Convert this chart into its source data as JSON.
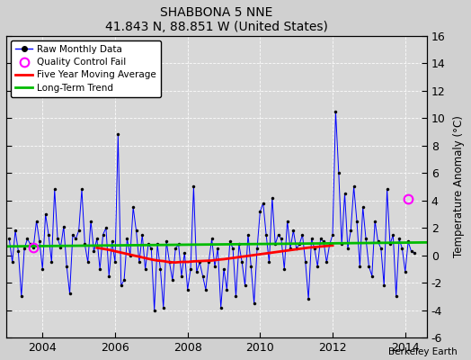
{
  "title": "SHABBONA 5 NNE",
  "subtitle": "41.843 N, 88.851 W (United States)",
  "ylabel": "Temperature Anomaly (°C)",
  "credit": "Berkeley Earth",
  "bg_color": "#d0d0d0",
  "plot_bg_color": "#d8d8d8",
  "ylim": [
    -6,
    16
  ],
  "yticks": [
    -6,
    -4,
    -2,
    0,
    2,
    4,
    6,
    8,
    10,
    12,
    14,
    16
  ],
  "xlim_start": 2003.0,
  "xlim_end": 2014.6,
  "xticks": [
    2004,
    2006,
    2008,
    2010,
    2012,
    2014
  ],
  "raw_color": "#0000ff",
  "ma_color": "#ff0000",
  "trend_color": "#00bb00",
  "qc_color": "#ff00ff",
  "trend_slope": 0.025,
  "trend_intercept": 0.65,
  "raw_data": {
    "times": [
      2003.083,
      2003.167,
      2003.25,
      2003.333,
      2003.417,
      2003.5,
      2003.583,
      2003.667,
      2003.75,
      2003.833,
      2003.917,
      2004.0,
      2004.083,
      2004.167,
      2004.25,
      2004.333,
      2004.417,
      2004.5,
      2004.583,
      2004.667,
      2004.75,
      2004.833,
      2004.917,
      2005.0,
      2005.083,
      2005.167,
      2005.25,
      2005.333,
      2005.417,
      2005.5,
      2005.583,
      2005.667,
      2005.75,
      2005.833,
      2005.917,
      2006.0,
      2006.083,
      2006.167,
      2006.25,
      2006.333,
      2006.417,
      2006.5,
      2006.583,
      2006.667,
      2006.75,
      2006.833,
      2006.917,
      2007.0,
      2007.083,
      2007.167,
      2007.25,
      2007.333,
      2007.417,
      2007.5,
      2007.583,
      2007.667,
      2007.75,
      2007.833,
      2007.917,
      2008.0,
      2008.083,
      2008.167,
      2008.25,
      2008.333,
      2008.417,
      2008.5,
      2008.583,
      2008.667,
      2008.75,
      2008.833,
      2008.917,
      2009.0,
      2009.083,
      2009.167,
      2009.25,
      2009.333,
      2009.417,
      2009.5,
      2009.583,
      2009.667,
      2009.75,
      2009.833,
      2009.917,
      2010.0,
      2010.083,
      2010.167,
      2010.25,
      2010.333,
      2010.417,
      2010.5,
      2010.583,
      2010.667,
      2010.75,
      2010.833,
      2010.917,
      2011.0,
      2011.083,
      2011.167,
      2011.25,
      2011.333,
      2011.417,
      2011.5,
      2011.583,
      2011.667,
      2011.75,
      2011.833,
      2011.917,
      2012.0,
      2012.083,
      2012.167,
      2012.25,
      2012.333,
      2012.417,
      2012.5,
      2012.583,
      2012.667,
      2012.75,
      2012.833,
      2012.917,
      2013.0,
      2013.083,
      2013.167,
      2013.25,
      2013.333,
      2013.417,
      2013.5,
      2013.583,
      2013.667,
      2013.75,
      2013.833,
      2013.917,
      2014.0,
      2014.083,
      2014.167,
      2014.25
    ],
    "values": [
      1.2,
      -0.5,
      1.8,
      0.3,
      -3.0,
      0.5,
      1.2,
      0.8,
      0.6,
      2.5,
      1.0,
      -1.0,
      3.0,
      1.5,
      -0.5,
      4.8,
      1.2,
      0.6,
      2.1,
      -0.8,
      -2.8,
      1.5,
      1.2,
      1.8,
      4.8,
      0.8,
      -0.5,
      2.5,
      0.3,
      1.2,
      -1.0,
      1.5,
      2.0,
      -1.5,
      1.0,
      -0.5,
      8.8,
      -2.2,
      -1.8,
      1.2,
      0.0,
      3.5,
      1.8,
      -0.5,
      1.5,
      -1.0,
      0.8,
      0.5,
      -4.0,
      0.8,
      -1.0,
      -3.8,
      1.0,
      -0.5,
      -1.8,
      0.5,
      0.8,
      -1.5,
      0.2,
      -2.5,
      -1.0,
      5.0,
      -1.2,
      -0.5,
      -1.5,
      -2.5,
      -0.5,
      1.2,
      -0.8,
      0.5,
      -3.8,
      -1.0,
      -2.5,
      1.0,
      0.5,
      -3.0,
      0.8,
      -0.5,
      -2.2,
      1.5,
      -0.8,
      -3.5,
      0.5,
      3.2,
      3.8,
      1.5,
      -0.5,
      4.2,
      0.8,
      1.5,
      1.2,
      -1.0,
      2.5,
      0.5,
      1.8,
      0.5,
      0.8,
      1.5,
      -0.5,
      -3.2,
      1.2,
      0.5,
      -0.8,
      1.2,
      1.0,
      -0.5,
      0.8,
      1.5,
      10.5,
      6.0,
      0.8,
      4.5,
      0.5,
      1.8,
      5.0,
      2.5,
      -0.8,
      3.5,
      1.2,
      -0.8,
      -1.5,
      2.5,
      1.0,
      0.5,
      -2.2,
      4.8,
      0.8,
      1.5,
      -3.0,
      1.2,
      0.5,
      -1.2,
      1.0,
      0.3,
      0.2
    ]
  },
  "qc_fails": [
    {
      "time": 2003.75,
      "value": 0.6
    },
    {
      "time": 2014.083,
      "value": 4.1
    }
  ],
  "moving_avg": {
    "times": [
      2005.5,
      2005.667,
      2005.833,
      2006.0,
      2006.167,
      2006.333,
      2006.5,
      2006.667,
      2006.833,
      2007.0,
      2007.167,
      2007.333,
      2007.5,
      2007.667,
      2007.833,
      2008.0,
      2008.167,
      2008.333,
      2008.5,
      2008.667,
      2008.833,
      2009.0,
      2009.167,
      2009.333,
      2009.5,
      2009.667,
      2009.833,
      2010.0,
      2010.167,
      2010.333,
      2010.5,
      2010.667,
      2010.833,
      2011.0,
      2011.167,
      2011.333,
      2011.5,
      2011.667,
      2011.833,
      2012.0
    ],
    "values": [
      0.55,
      0.48,
      0.4,
      0.3,
      0.2,
      0.1,
      0.0,
      -0.1,
      -0.2,
      -0.3,
      -0.38,
      -0.42,
      -0.5,
      -0.52,
      -0.48,
      -0.48,
      -0.44,
      -0.42,
      -0.4,
      -0.38,
      -0.32,
      -0.28,
      -0.22,
      -0.16,
      -0.1,
      -0.04,
      0.02,
      0.08,
      0.14,
      0.2,
      0.26,
      0.32,
      0.38,
      0.44,
      0.5,
      0.56,
      0.6,
      0.64,
      0.68,
      0.72
    ]
  }
}
